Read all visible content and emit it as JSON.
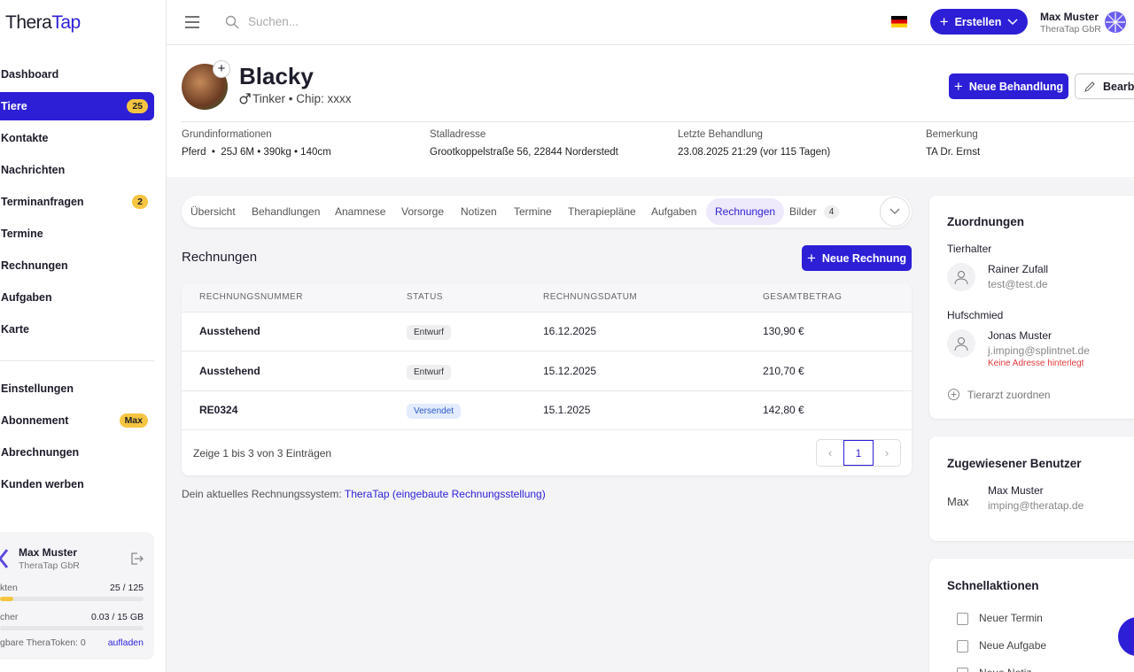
{
  "sidebar": {
    "logo_a": "Thera",
    "logo_b": "Tap",
    "nav": [
      {
        "label": "Dashboard"
      },
      {
        "label": "Tiere",
        "badge": 25
      },
      {
        "label": "Kontakte"
      },
      {
        "label": "Nachrichten"
      },
      {
        "label": "Terminanfragen",
        "badge": 2
      },
      {
        "label": "Termine"
      },
      {
        "label": "Rechnungen"
      },
      {
        "label": "Aufgaben"
      },
      {
        "label": "Karte"
      }
    ],
    "nav2": [
      {
        "label": "Einstellungen"
      },
      {
        "label": "Abonnement",
        "badge": "Max"
      },
      {
        "label": "Abrechnungen"
      },
      {
        "label": "Kunden werben"
      }
    ],
    "user": {
      "name": "Max Muster",
      "company": "TheraTap GbR",
      "contacts_label": "kten",
      "contacts_value": "25 / 125",
      "storage_label": "cher",
      "storage_value": "0.03 / 15 GB",
      "tokens": "gbare TheraToken: 0",
      "tokens_link": "aufladen"
    }
  },
  "topbar": {
    "search": "Suchen...",
    "create": "Erstellen",
    "user_name": "Max Muster",
    "user_company": "TheraTap GbR"
  },
  "animal": {
    "name": "Blacky",
    "subtitle": "Tinker • Chip: xxxx",
    "new_treatment": "Neue Behandlung",
    "edit": "Bearbe",
    "info": [
      {
        "label": "Grundinformationen",
        "value": "Pferd  •  25J 6M • 390kg • 140cm"
      },
      {
        "label": "Stalladresse",
        "value": "Grootkoppelstraße 56, 22844 Norderstedt"
      },
      {
        "label": "Letzte Behandlung",
        "value": "23.08.2025 21:29 (vor 115 Tagen)"
      },
      {
        "label": "Bemerkung",
        "value": "TA Dr. Ernst"
      }
    ]
  },
  "tabs": [
    {
      "label": "Übersicht"
    },
    {
      "label": "Behandlungen"
    },
    {
      "label": "Anamnese"
    },
    {
      "label": "Vorsorge"
    },
    {
      "label": "Notizen"
    },
    {
      "label": "Termine"
    },
    {
      "label": "Therapiepläne"
    },
    {
      "label": "Aufgaben"
    },
    {
      "label": "Rechnungen"
    },
    {
      "label": "Bilder",
      "badge": 4
    }
  ],
  "invoices": {
    "title": "Rechnungen",
    "new": "Neue Rechnung",
    "columns": [
      "RECHNUNGSNUMMER",
      "STATUS",
      "RECHNUNGSDATUM",
      "GESAMTBETRAG"
    ],
    "rows": [
      [
        "Ausstehend",
        "Entwurf",
        "16.12.2025",
        "130,90 €"
      ],
      [
        "Ausstehend",
        "Entwurf",
        "15.12.2025",
        "210,70 €"
      ],
      [
        "RE0324",
        "Versendet",
        "15.1.2025",
        "142,80 €"
      ]
    ],
    "footer": "Zeige 1 bis 3 von 3 Einträgen",
    "page": 1,
    "system_text": "Dein aktuelles Rechnungssystem:",
    "system_link": "TheraTap (eingebaute Rechnungsstellung)"
  },
  "assignments": {
    "title": "Zuordnungen",
    "groups": [
      {
        "role": "Tierhalter",
        "name": "Rainer Zufall",
        "email": "test@test.de"
      },
      {
        "role": "Hufschmied",
        "name": "Jonas Muster",
        "email": "j.imping@splintnet.de",
        "warning": "Keine Adresse hinterlegt"
      }
    ],
    "add": "Tierarzt zuordnen"
  },
  "assigned_user": {
    "title": "Zugewiesener Benutzer",
    "avatar_alt": "Max",
    "name": "Max Muster",
    "email": "imping@theratap.de"
  },
  "quick_actions": {
    "title": "Schnellaktionen",
    "items": [
      "Neuer Termin",
      "Neue Aufgabe",
      "Neue Notiz"
    ]
  }
}
